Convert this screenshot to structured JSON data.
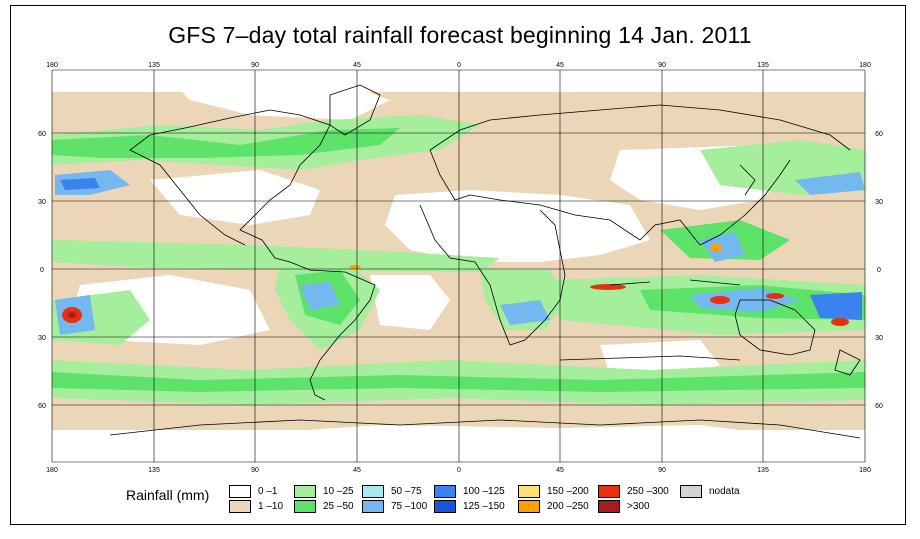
{
  "title": "GFS 7–day total rainfall forecast beginning 14 Jan. 2011",
  "axes": {
    "top": [
      "180",
      "135",
      "90",
      "45",
      "0",
      "45",
      "90",
      "135",
      "180"
    ],
    "bottom": [
      "180",
      "135",
      "90",
      "45",
      "0",
      "45",
      "90",
      "135",
      "180"
    ],
    "left": [
      "60",
      "30",
      "0",
      "30",
      "60"
    ],
    "right": [
      "60",
      "30",
      "0",
      "30",
      "60"
    ]
  },
  "legend": {
    "title": "Rainfall (mm)",
    "items": [
      {
        "label": "0 –1",
        "color": "#ffffff"
      },
      {
        "label": "1 –10",
        "color": "#ecd6b8"
      },
      {
        "label": "10 –25",
        "color": "#a4ee9c"
      },
      {
        "label": "25 –50",
        "color": "#5ee36a"
      },
      {
        "label": "50 –75",
        "color": "#a8e8f4"
      },
      {
        "label": "75 –100",
        "color": "#74b8f0"
      },
      {
        "label": "100 –125",
        "color": "#3a82f0"
      },
      {
        "label": "125 –150",
        "color": "#1c54d6"
      },
      {
        "label": "150 –200",
        "color": "#ffe070"
      },
      {
        "label": "200 –250",
        "color": "#ffa000"
      },
      {
        "label": "250 –300",
        "color": "#e83010"
      },
      {
        "label": ">300",
        "color": "#a81c1c"
      },
      {
        "label": "nodata",
        "color": "#d4d4d4"
      }
    ]
  },
  "colors": {
    "ocean_base": "#ecd6b8",
    "dry": "#ffffff",
    "wet_light": "#a4ee9c",
    "wet": "#5ee36a",
    "heavy": "#74b8f0",
    "very_heavy": "#3a82f0",
    "extreme": "#e83010",
    "coast": "#000000"
  }
}
